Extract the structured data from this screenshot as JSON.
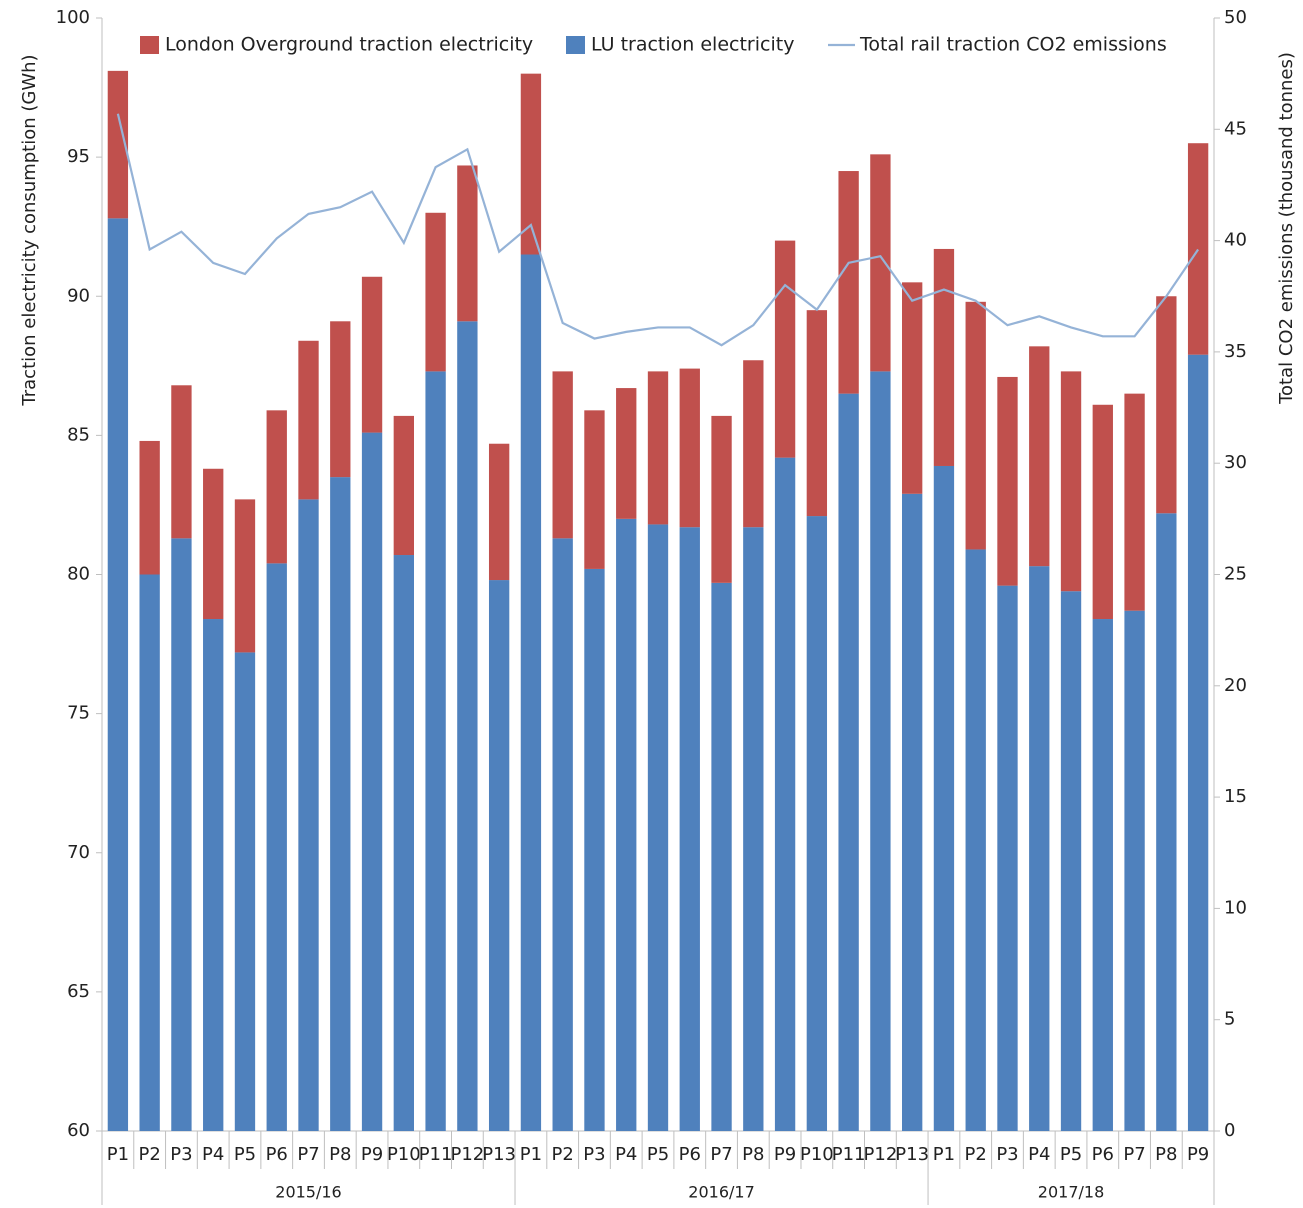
{
  "chart_data": {
    "type": "bar",
    "y_axis_title": "Traction electricity consumption (GWh)",
    "y2_axis_title": "Total CO2 emissions (thousand tonnes)",
    "category_groups": [
      {
        "name": "2015/16",
        "categories": [
          "P1",
          "P2",
          "P3",
          "P4",
          "P5",
          "P6",
          "P7",
          "P8",
          "P9",
          "P10",
          "P11",
          "P12",
          "P13"
        ]
      },
      {
        "name": "2016/17",
        "categories": [
          "P1",
          "P2",
          "P3",
          "P4",
          "P5",
          "P6",
          "P7",
          "P8",
          "P9",
          "P10",
          "P11",
          "P12",
          "P13"
        ]
      },
      {
        "name": "2017/18",
        "categories": [
          "P1",
          "P2",
          "P3",
          "P4",
          "P5",
          "P6",
          "P7",
          "P8",
          "P9"
        ]
      }
    ],
    "series": [
      {
        "name": "London Overground traction electricity",
        "type": "bar",
        "color": "#c0504d",
        "values": [
          5.3,
          4.8,
          5.5,
          5.4,
          5.5,
          5.5,
          5.7,
          5.6,
          5.6,
          5.0,
          5.7,
          5.6,
          4.9,
          6.5,
          6.0,
          5.7,
          4.7,
          5.5,
          5.7,
          6.0,
          6.0,
          7.8,
          7.4,
          8.0,
          7.8,
          7.6,
          7.8,
          8.9,
          7.5,
          7.9,
          7.9,
          7.7,
          7.8,
          7.8,
          7.6
        ]
      },
      {
        "name": "LU traction electricity",
        "type": "bar",
        "color": "#4f81bd",
        "values": [
          92.8,
          80.0,
          81.3,
          78.4,
          77.2,
          80.4,
          82.7,
          83.5,
          85.1,
          80.7,
          87.3,
          89.1,
          79.8,
          91.5,
          81.3,
          80.2,
          82.0,
          81.8,
          81.7,
          79.7,
          81.7,
          84.2,
          82.1,
          86.5,
          87.3,
          82.9,
          83.9,
          80.9,
          79.6,
          80.3,
          79.4,
          78.4,
          78.7,
          82.2,
          87.9
        ]
      },
      {
        "name": "Total rail traction CO2 emissions",
        "type": "line",
        "axis": "y2",
        "color": "#95b3d7",
        "values": [
          45.7,
          39.6,
          40.4,
          39.0,
          38.5,
          40.1,
          41.2,
          41.5,
          42.2,
          39.9,
          43.3,
          44.1,
          39.5,
          40.7,
          36.3,
          35.6,
          35.9,
          36.1,
          36.1,
          35.3,
          36.2,
          38.0,
          36.9,
          39.0,
          39.3,
          37.3,
          37.8,
          37.3,
          36.2,
          36.6,
          36.1,
          35.7,
          35.7,
          37.5,
          39.6
        ]
      }
    ],
    "ylim": [
      60,
      100
    ],
    "yticks": [
      60,
      65,
      70,
      75,
      80,
      85,
      90,
      95,
      100
    ],
    "y2lim": [
      0,
      50
    ],
    "y2ticks": [
      0,
      5,
      10,
      15,
      20,
      25,
      30,
      35,
      40,
      45,
      50
    ],
    "legend": "top",
    "grid": false
  }
}
